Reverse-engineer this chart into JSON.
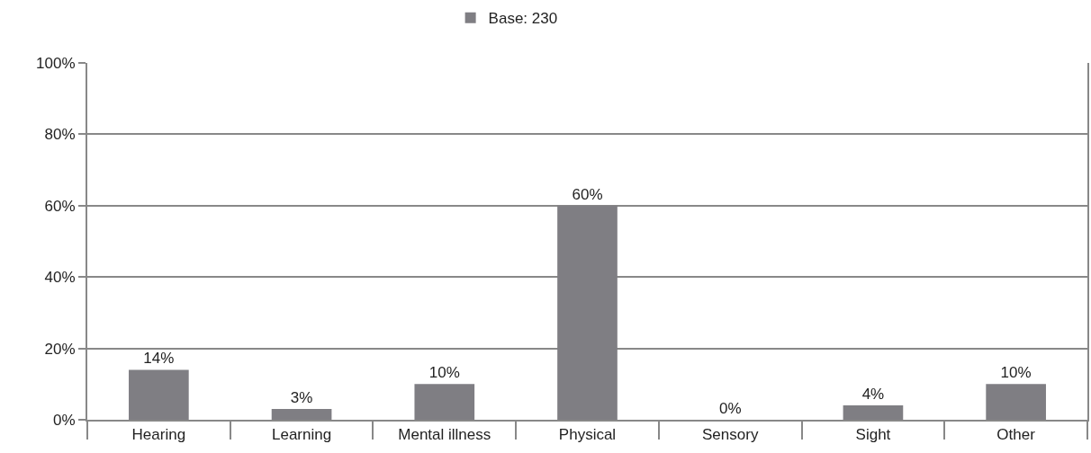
{
  "chart_data": {
    "type": "bar",
    "categories": [
      "Hearing",
      "Learning",
      "Mental illness",
      "Physical",
      "Sensory",
      "Sight",
      "Other"
    ],
    "series": [
      {
        "name": "Base: 230",
        "color": "#7f7e83",
        "values": [
          14,
          3,
          10,
          60,
          0,
          4,
          10
        ],
        "value_labels": [
          "14%",
          "3%",
          "10%",
          "60%",
          "0%",
          "4%",
          "10%"
        ]
      }
    ],
    "ylim": [
      0,
      100
    ],
    "yticks": [
      {
        "value": 0,
        "label": "0%"
      },
      {
        "value": 20,
        "label": "20%"
      },
      {
        "value": 40,
        "label": "40%"
      },
      {
        "value": 60,
        "label": "60%"
      },
      {
        "value": 80,
        "label": "80%"
      },
      {
        "value": 100,
        "label": "100%"
      }
    ],
    "grid": "y",
    "legend": "top"
  }
}
